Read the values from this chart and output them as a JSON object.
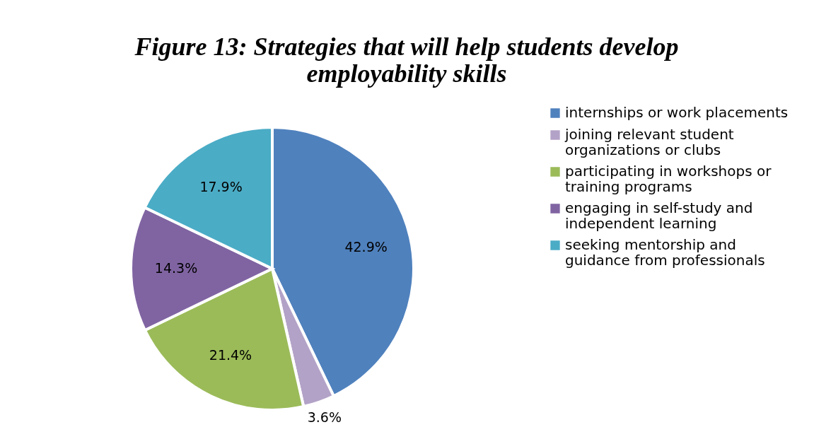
{
  "chart_data": {
    "type": "pie",
    "title": "Figure 13: Strategies that will help students develop employability skills",
    "categories": [
      "internships or work placements",
      "joining relevant student organizations or clubs",
      "participating in workshops or training programs",
      "engaging in self-study and independent learning",
      "seeking mentorship and guidance from professionals"
    ],
    "values": [
      42.9,
      3.6,
      21.4,
      14.3,
      17.9
    ],
    "value_labels": [
      "42.9%",
      "3.6%",
      "21.4%",
      "14.3%",
      "17.9%"
    ],
    "colors": [
      "#4f81bd",
      "#b3a2c7",
      "#9bbb59",
      "#8064a2",
      "#4bacc6"
    ],
    "legend": "right"
  }
}
